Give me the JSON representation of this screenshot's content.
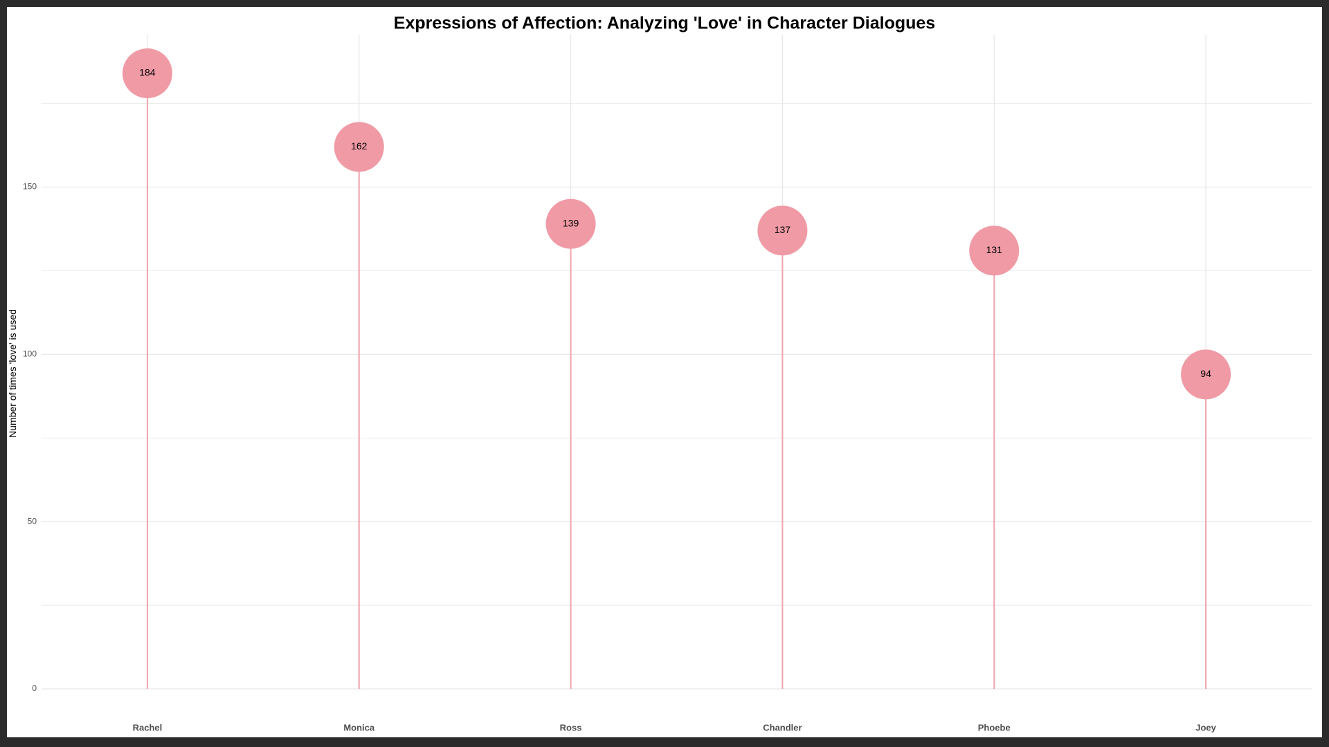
{
  "chart_data": {
    "type": "lollipop",
    "title": "Expressions of Affection: Analyzing 'Love' in Character Dialogues",
    "xlabel": "",
    "ylabel": "Number of times 'love' is used",
    "categories": [
      "Rachel",
      "Monica",
      "Ross",
      "Chandler",
      "Phoebe",
      "Joey"
    ],
    "values": [
      184,
      162,
      139,
      137,
      131,
      94
    ],
    "ylim": [
      0,
      193
    ],
    "yticks": [
      0,
      50,
      100,
      150
    ],
    "grid": true,
    "legend": "none",
    "colors": {
      "point": "#ef9aa5",
      "stem": "#f1a3ad",
      "grid": "#e6e6e6"
    }
  }
}
